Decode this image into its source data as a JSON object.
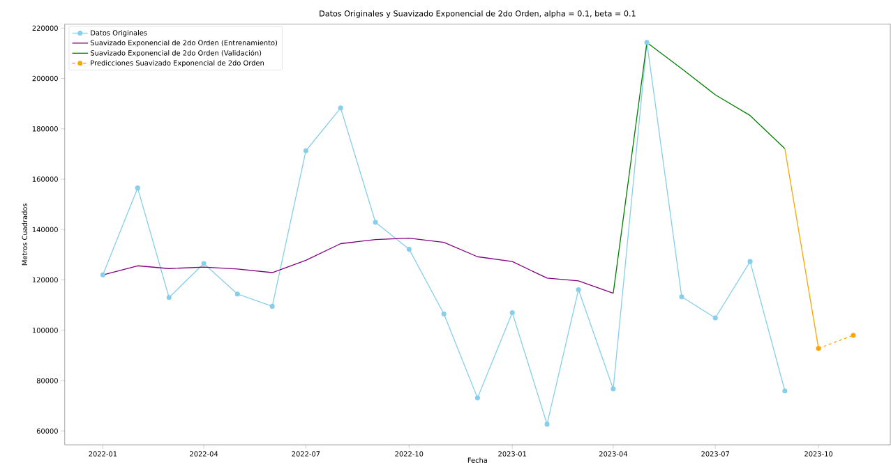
{
  "chart_data": {
    "type": "line",
    "title": "Datos Originales y Suavizado Exponencial de 2do Orden, alpha = 0.1, beta = 0.1",
    "xlabel": "Fecha",
    "ylabel": "Metros Cuadrados",
    "series": [
      {
        "name": "Datos Originales",
        "color": "#87ceeb",
        "marker": "circle",
        "x": [
          "2022-01",
          "2022-02",
          "2022-03",
          "2022-04",
          "2022-05",
          "2022-06",
          "2022-07",
          "2022-08",
          "2022-09",
          "2022-10",
          "2022-11",
          "2022-12",
          "2023-01",
          "2023-02",
          "2023-03",
          "2023-04",
          "2023-05",
          "2023-06",
          "2023-07",
          "2023-08",
          "2023-09"
        ],
        "values": [
          122000,
          156500,
          113000,
          126500,
          114400,
          109500,
          171300,
          188300,
          142900,
          132200,
          106500,
          73100,
          107000,
          62700,
          116100,
          76700,
          214300,
          113300,
          104900,
          127300,
          75900
        ]
      },
      {
        "name": "Suavizado Exponencial de 2do Orden (Entrenamiento)",
        "color": "#800080",
        "x": [
          "2022-01",
          "2022-02",
          "2022-03",
          "2022-04",
          "2022-05",
          "2022-06",
          "2022-07",
          "2022-08",
          "2022-09",
          "2022-10",
          "2022-11",
          "2022-12",
          "2023-01",
          "2023-02",
          "2023-03",
          "2023-04"
        ],
        "values": [
          122000,
          125600,
          124500,
          125100,
          124300,
          122900,
          127800,
          134400,
          136000,
          136600,
          134900,
          129200,
          127300,
          120700,
          119600,
          114700
        ]
      },
      {
        "name": "Suavizado Exponencial de 2do Orden (Validación)",
        "color": "#008000",
        "x": [
          "2023-04",
          "2023-05",
          "2023-06",
          "2023-07",
          "2023-08",
          "2023-09"
        ],
        "values": [
          114700,
          214300,
          203900,
          193500,
          185300,
          172100
        ]
      },
      {
        "color": "#ffa500",
        "x": [
          "2023-09",
          "2023-10"
        ],
        "values": [
          172100,
          92800
        ]
      },
      {
        "name": "Predicciones Suavizado Exponencial de 2do Orden",
        "color": "#ffa500",
        "marker": "circle",
        "line_style": "dashed",
        "x": [
          "2023-10",
          "2023-11"
        ],
        "values": [
          92800,
          98000
        ]
      }
    ],
    "xlim": [
      "2021-11-28",
      "2023-12-04"
    ],
    "xticks": [
      "2022-01",
      "2022-04",
      "2022-07",
      "2022-10",
      "2023-01",
      "2023-04",
      "2023-07",
      "2023-10"
    ],
    "ylim": [
      54500,
      221600
    ],
    "yticks": [
      60000,
      80000,
      100000,
      120000,
      140000,
      160000,
      180000,
      200000,
      220000
    ],
    "grid": false,
    "legend": "top left"
  }
}
